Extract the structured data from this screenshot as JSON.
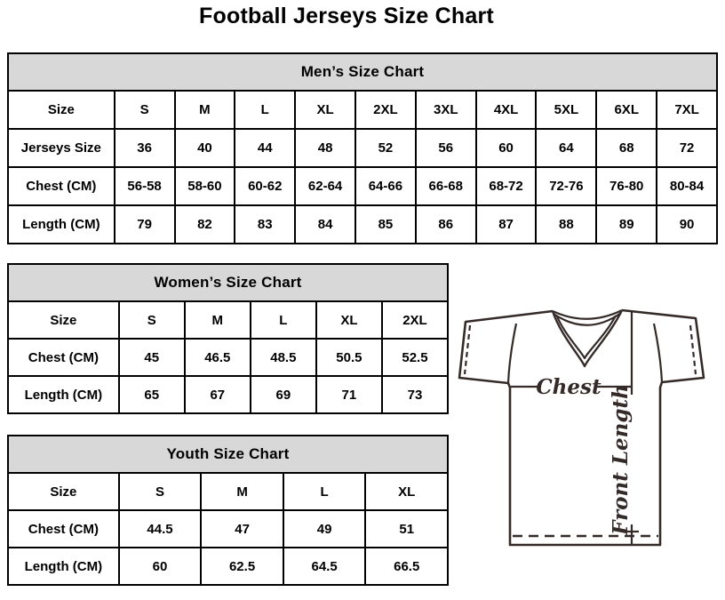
{
  "page_title": "Football Jerseys Size Chart",
  "tables": {
    "men": {
      "title": "Men’s Size Chart",
      "corner_label": "Size",
      "columns": [
        "S",
        "M",
        "L",
        "XL",
        "2XL",
        "3XL",
        "4XL",
        "5XL",
        "6XL",
        "7XL"
      ],
      "rows": [
        {
          "label": "Jerseys Size",
          "values": [
            "36",
            "40",
            "44",
            "48",
            "52",
            "56",
            "60",
            "64",
            "68",
            "72"
          ]
        },
        {
          "label": "Chest (CM)",
          "values": [
            "56-58",
            "58-60",
            "60-62",
            "62-64",
            "64-66",
            "66-68",
            "68-72",
            "72-76",
            "76-80",
            "80-84"
          ]
        },
        {
          "label": "Length (CM)",
          "values": [
            "79",
            "82",
            "83",
            "84",
            "85",
            "86",
            "87",
            "88",
            "89",
            "90"
          ]
        }
      ]
    },
    "women": {
      "title": "Women’s Size Chart",
      "corner_label": "Size",
      "columns": [
        "S",
        "M",
        "L",
        "XL",
        "2XL"
      ],
      "rows": [
        {
          "label": "Chest (CM)",
          "values": [
            "45",
            "46.5",
            "48.5",
            "50.5",
            "52.5"
          ]
        },
        {
          "label": "Length (CM)",
          "values": [
            "65",
            "67",
            "69",
            "71",
            "73"
          ]
        }
      ]
    },
    "youth": {
      "title": "Youth Size Chart",
      "corner_label": "Size",
      "columns": [
        "S",
        "M",
        "L",
        "XL"
      ],
      "rows": [
        {
          "label": "Chest (CM)",
          "values": [
            "44.5",
            "47",
            "49",
            "51"
          ]
        },
        {
          "label": "Length (CM)",
          "values": [
            "60",
            "62.5",
            "64.5",
            "66.5"
          ]
        }
      ]
    }
  },
  "diagram": {
    "chest_label": "Chest",
    "front_length_label": "Front Length"
  },
  "colors": {
    "table_header_bg": "#d8d8d8",
    "table_border": "#000000",
    "diagram_line": "#342b28",
    "text": "#000000"
  }
}
